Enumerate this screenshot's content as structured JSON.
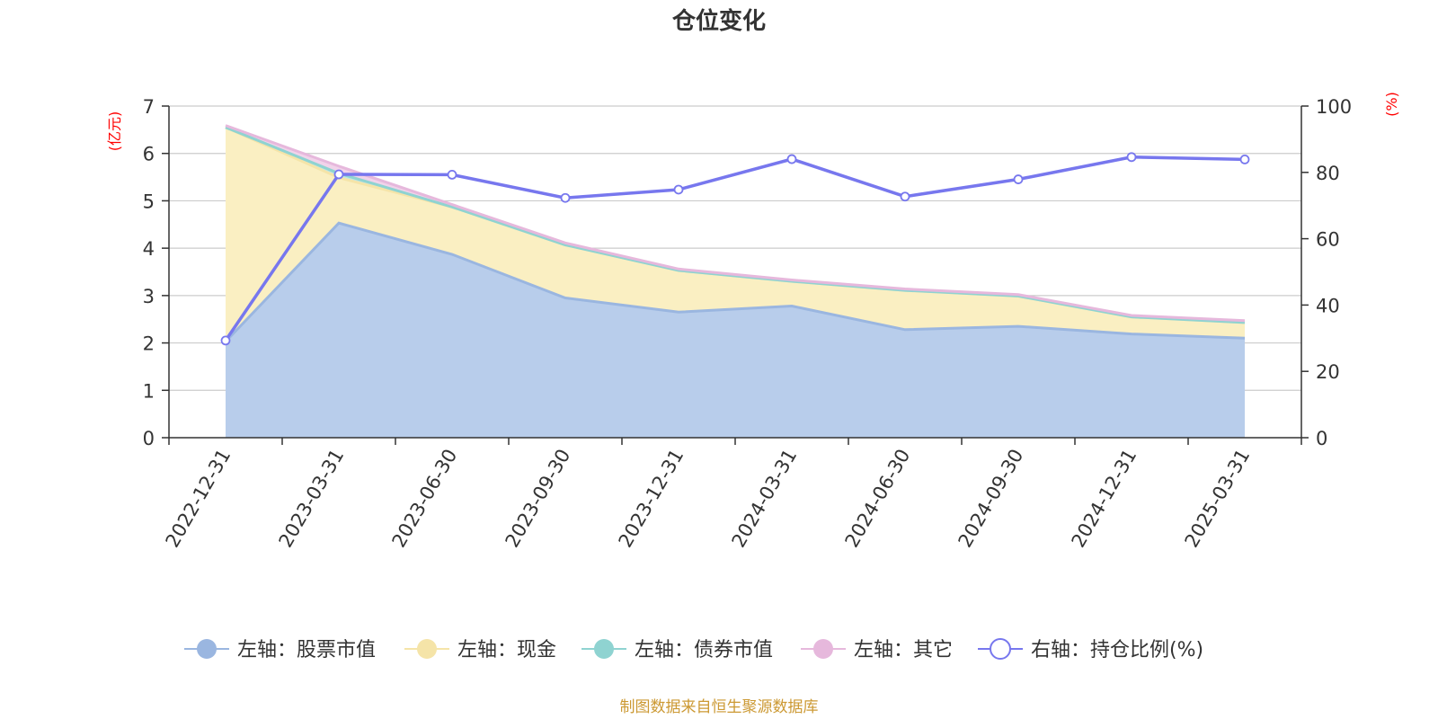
{
  "chart_data": {
    "type": "area",
    "title": "仓位变化",
    "categories": [
      "2022-12-31",
      "2023-03-31",
      "2023-06-30",
      "2023-09-30",
      "2023-12-31",
      "2024-03-31",
      "2024-06-30",
      "2024-09-30",
      "2024-12-31",
      "2025-03-31"
    ],
    "left_axis": {
      "unit": "(亿元)",
      "ylim": [
        0,
        7
      ],
      "ticks": [
        0,
        1,
        2,
        3,
        4,
        5,
        6,
        7
      ]
    },
    "right_axis": {
      "unit": "(%)",
      "ylim": [
        0,
        100
      ],
      "ticks": [
        0,
        20,
        40,
        60,
        80,
        100
      ]
    },
    "series": [
      {
        "name": "左轴：股票市值",
        "axis": "left",
        "kind": "area",
        "color": "#9ab6e0",
        "fill": "#b8cdeb",
        "values": [
          2.03,
          4.53,
          3.87,
          2.95,
          2.65,
          2.78,
          2.28,
          2.35,
          2.19,
          2.1
        ]
      },
      {
        "name": "左轴：现金",
        "axis": "left",
        "kind": "area",
        "color": "#f5e4a8",
        "fill": "#faefc2",
        "values": [
          4.52,
          0.96,
          1.0,
          1.12,
          0.88,
          0.52,
          0.83,
          0.64,
          0.36,
          0.33
        ]
      },
      {
        "name": "左轴：债券市值",
        "axis": "left",
        "kind": "area",
        "color": "#8fd3d1",
        "fill": "#bfe6e5",
        "values": [
          0.0,
          0.09,
          0.0,
          0.0,
          0.0,
          0.0,
          0.0,
          0.0,
          0.0,
          0.0
        ]
      },
      {
        "name": "左轴：其它",
        "axis": "left",
        "kind": "area",
        "color": "#e6b8dc",
        "fill": "#f1d3ea",
        "values": [
          0.04,
          0.15,
          0.05,
          0.04,
          0.03,
          0.03,
          0.03,
          0.03,
          0.03,
          0.04
        ]
      },
      {
        "name": "右轴：持仓比例(%)",
        "axis": "right",
        "kind": "line",
        "color": "#7777ee",
        "values": [
          29.3,
          79.4,
          79.3,
          72.3,
          74.8,
          84.0,
          72.7,
          77.9,
          84.6,
          83.9
        ]
      }
    ],
    "grid": true,
    "legend": "bottom"
  },
  "footer": {
    "source": "制图数据来自恒生聚源数据库"
  },
  "colors": {
    "accent_text": "#ff0000",
    "source_text": "#cc9933"
  }
}
